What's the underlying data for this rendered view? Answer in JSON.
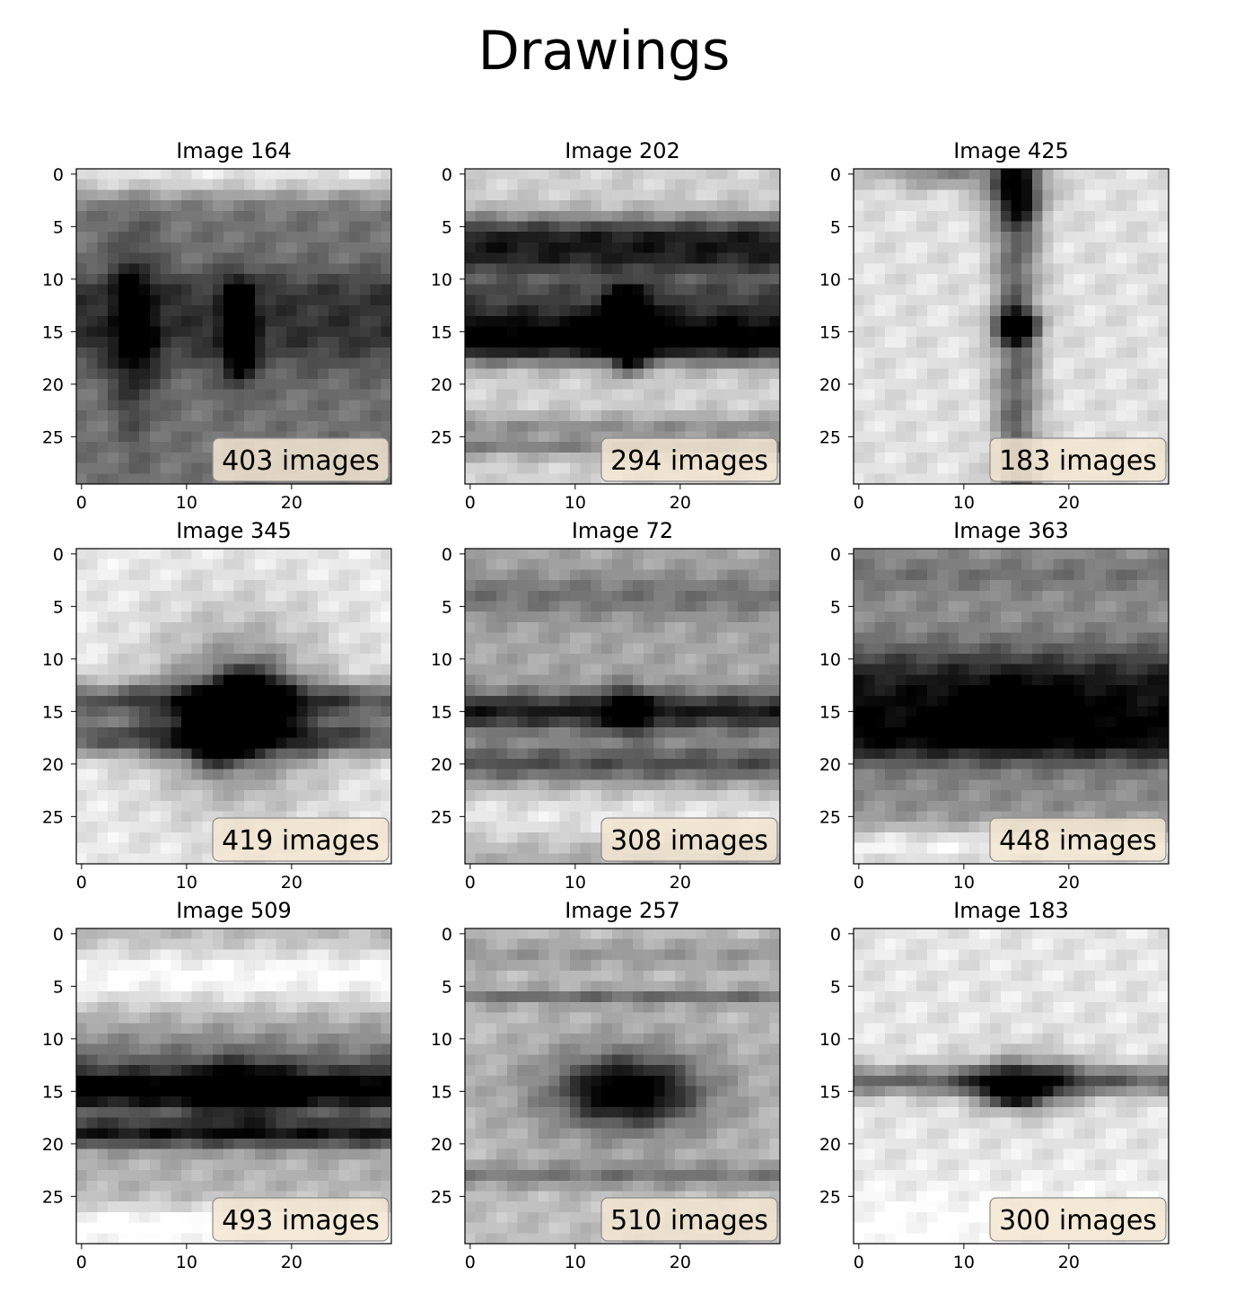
{
  "title": "Drawings",
  "chart_data": {
    "type": "heatmap",
    "title": "Drawings",
    "colormap": "gray",
    "image_size": [
      30,
      30
    ],
    "xticks": [
      0,
      10,
      20
    ],
    "yticks": [
      0,
      5,
      10,
      15,
      20,
      25
    ],
    "xlim": [
      -0.5,
      29.5
    ],
    "ylim": [
      29.5,
      -0.5
    ],
    "label_box_color": "#f2e6d0",
    "panels": [
      {
        "title": "Image 164",
        "count_label": "403 images",
        "background": 0.55,
        "blobs": [
          [
            15,
            15,
            3,
            1,
            0.9
          ],
          [
            15,
            5,
            6,
            1.5,
            0.4
          ]
        ],
        "bands": [
          [
            11,
            1.5,
            0.15
          ],
          [
            15,
            2.5,
            0.25
          ],
          [
            0,
            1.5,
            -0.45
          ]
        ],
        "dark_level": 0.55
      },
      {
        "title": "Image 202",
        "count_label": "294 images",
        "background": 0.18,
        "blobs": [
          [
            14,
            15,
            2,
            1.5,
            0.9
          ],
          [
            16,
            15,
            2,
            1,
            0.7
          ]
        ],
        "bands": [
          [
            6,
            1.5,
            0.65
          ],
          [
            8.5,
            1.2,
            0.45
          ],
          [
            14,
            1.8,
            0.7
          ],
          [
            16.5,
            1.2,
            0.55
          ],
          [
            11,
            1,
            0.3
          ],
          [
            24,
            0.8,
            0.25
          ],
          [
            26,
            0.7,
            0.3
          ]
        ],
        "dark_level": 0.55
      },
      {
        "title": "Image 425",
        "count_label": "183 images",
        "background": 0.12,
        "blobs": [
          [
            14.5,
            15,
            1,
            1.5,
            0.95
          ],
          [
            2,
            15,
            2,
            2,
            0.5
          ],
          [
            0,
            8,
            1,
            5,
            0.35
          ]
        ],
        "vbands": [
          [
            15,
            1.5,
            0.5
          ]
        ],
        "bands": [],
        "dark_level": 0.55
      },
      {
        "title": "Image 345",
        "count_label": "419 images",
        "background": 0.08,
        "blobs": [
          [
            14,
            16,
            2,
            2,
            0.85
          ],
          [
            17,
            13,
            2,
            2,
            0.85
          ],
          [
            15,
            15,
            6,
            6,
            0.5
          ]
        ],
        "bands": [
          [
            14,
            1.2,
            0.55
          ],
          [
            17.5,
            1.2,
            0.55
          ]
        ],
        "dark_level": 0.55
      },
      {
        "title": "Image 72",
        "count_label": "308 images",
        "background": 0.35,
        "blobs": [
          [
            15,
            15,
            1.5,
            1.5,
            0.6
          ]
        ],
        "bands": [
          [
            15,
            1.3,
            0.55
          ],
          [
            20,
            1.2,
            0.35
          ],
          [
            4,
            1.5,
            0.2
          ],
          [
            25,
            2,
            -0.25
          ]
        ],
        "dark_level": 0.55
      },
      {
        "title": "Image 363",
        "count_label": "448 images",
        "background": 0.45,
        "blobs": [
          [
            15,
            15,
            2,
            4,
            0.3
          ]
        ],
        "bands": [
          [
            15,
            2.5,
            0.45
          ],
          [
            11,
            2,
            0.25
          ],
          [
            18,
            1.5,
            0.3
          ],
          [
            28,
            1.5,
            -0.4
          ],
          [
            2,
            1,
            0.1
          ]
        ],
        "dark_level": 0.55
      },
      {
        "title": "Image 509",
        "count_label": "493 images",
        "background": 0.3,
        "blobs": [
          [
            15,
            15,
            2,
            3,
            0.4
          ]
        ],
        "bands": [
          [
            15,
            1.3,
            0.6
          ],
          [
            19,
            1,
            0.6
          ],
          [
            13,
            2.5,
            0.3
          ],
          [
            4,
            2,
            -0.3
          ],
          [
            28,
            1.5,
            -0.35
          ]
        ],
        "dark_level": 0.55
      },
      {
        "title": "Image 257",
        "count_label": "510 images",
        "background": 0.25,
        "blobs": [
          [
            15,
            15,
            2,
            4,
            0.65
          ],
          [
            15,
            15,
            4,
            8,
            0.3
          ]
        ],
        "bands": [
          [
            6,
            0.6,
            0.3
          ],
          [
            23,
            0.8,
            0.25
          ],
          [
            2,
            1,
            0.15
          ]
        ],
        "dark_level": 0.55
      },
      {
        "title": "Image 183",
        "count_label": "300 images",
        "background": 0.1,
        "blobs": [
          [
            15,
            15,
            1,
            2,
            0.85
          ],
          [
            14,
            16,
            2,
            4,
            0.4
          ]
        ],
        "bands": [
          [
            14,
            1,
            0.5
          ],
          [
            28,
            3,
            -0.1
          ]
        ],
        "dark_level": 0.55
      }
    ]
  }
}
